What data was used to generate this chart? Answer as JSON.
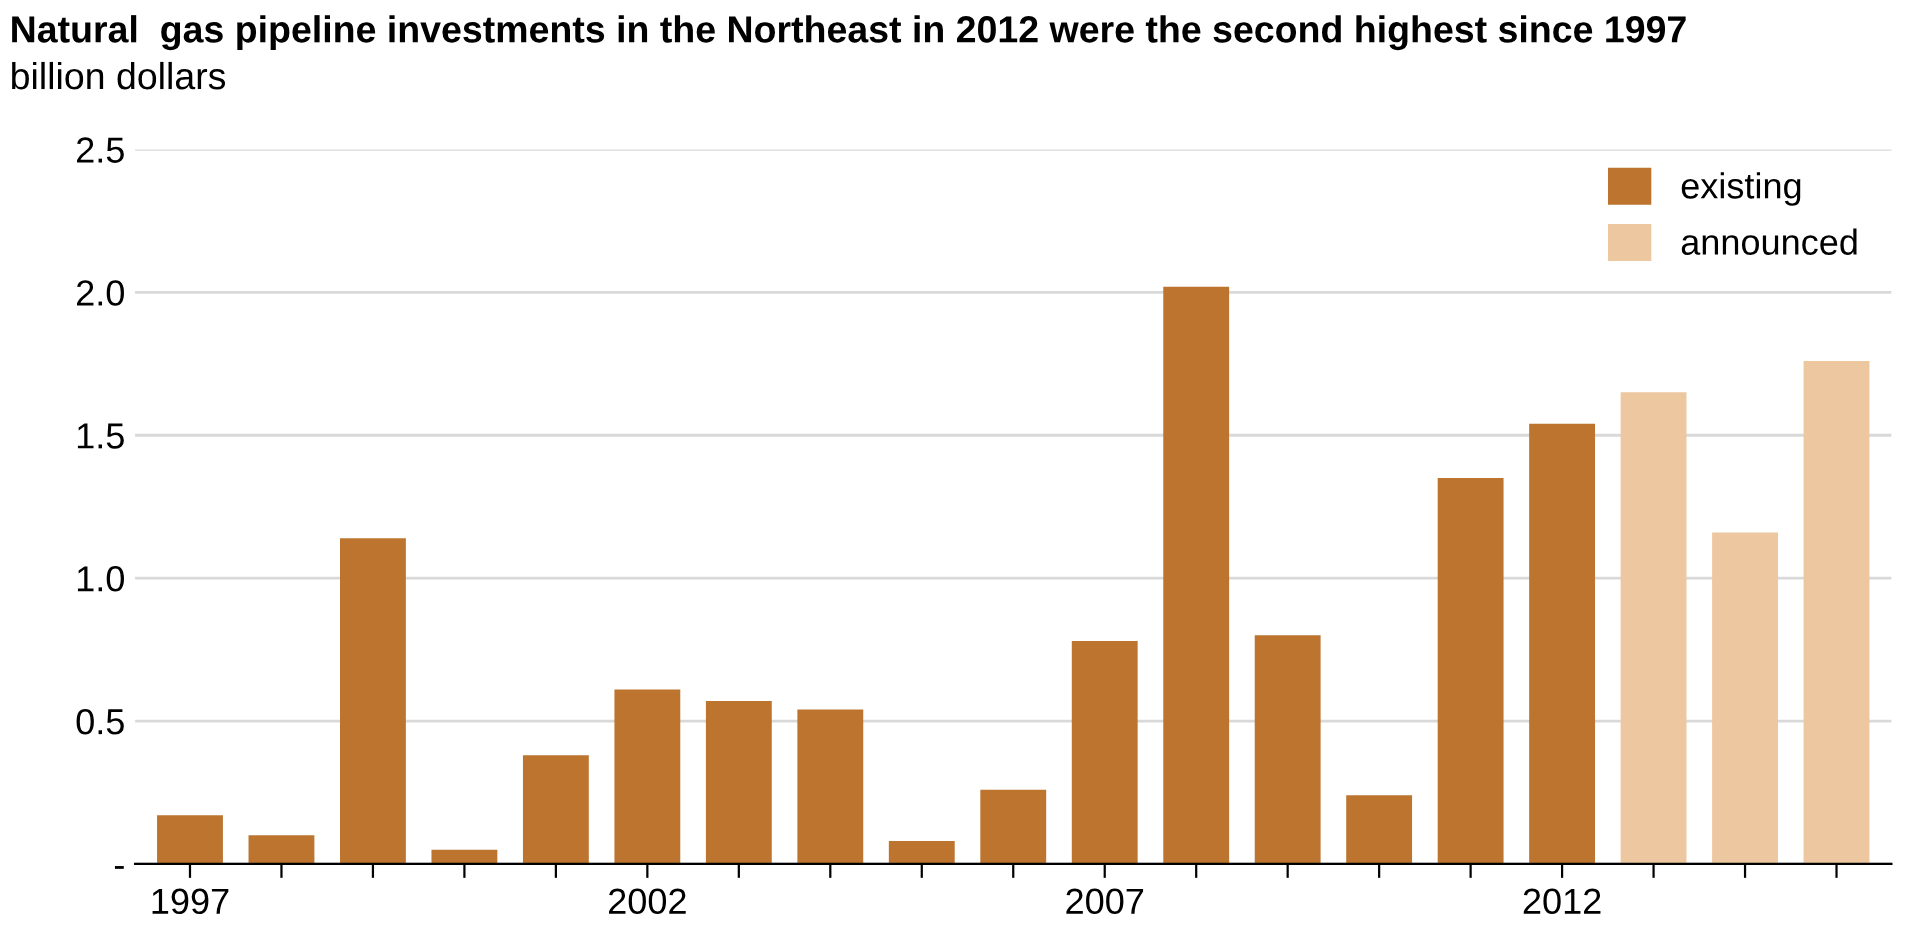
{
  "chart_data": {
    "type": "bar",
    "title": "Natural  gas pipeline investments in the Northeast in 2012 were the second highest since 1997",
    "ylabel": "billion dollars",
    "categories": [
      "1997",
      null,
      null,
      null,
      null,
      "2002",
      null,
      null,
      null,
      null,
      "2007",
      null,
      null,
      null,
      null,
      "2012",
      null,
      null,
      null
    ],
    "series": [
      {
        "name": "existing",
        "color": "#bc742e",
        "values": [
          0.17,
          0.1,
          1.14,
          0.05,
          0.38,
          0.61,
          0.57,
          0.54,
          0.08,
          0.26,
          0.78,
          2.02,
          0.8,
          0.24,
          1.35,
          1.54,
          null,
          null,
          null
        ]
      },
      {
        "name": "announced",
        "color": "#edc7a0",
        "values": [
          null,
          null,
          null,
          null,
          null,
          null,
          null,
          null,
          null,
          null,
          null,
          null,
          null,
          null,
          null,
          null,
          1.65,
          1.16,
          1.76
        ]
      }
    ],
    "ylim": [
      0,
      2.5
    ],
    "yticks": [
      {
        "value": 0,
        "label": "-"
      },
      0.5,
      {
        "value": 1,
        "label": "1.0"
      },
      1.5,
      {
        "value": 2,
        "label": "2.0"
      },
      2.5
    ],
    "grid": "y",
    "legend": "top right"
  }
}
